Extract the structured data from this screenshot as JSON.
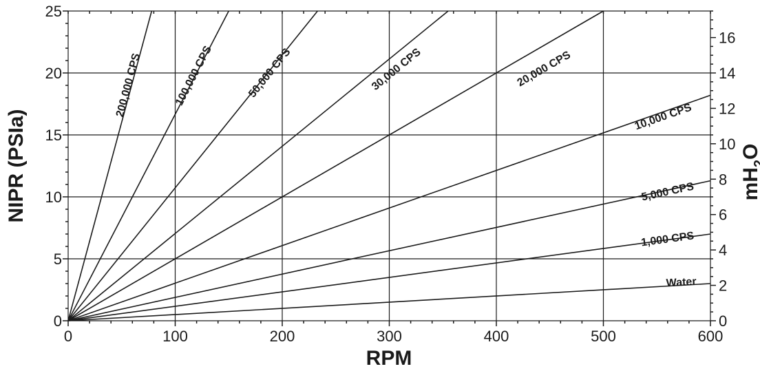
{
  "chart_data": {
    "type": "line",
    "xlabel": "RPM",
    "ylabel": "NIPR (PSIa)",
    "y2label_main": "mH",
    "y2label_sub": "2",
    "y2label_end": "O",
    "xlim": [
      0,
      600
    ],
    "ylim": [
      0,
      25
    ],
    "y2lim": [
      0,
      17.5
    ],
    "grid": true,
    "x_ticks": [
      0,
      100,
      200,
      300,
      400,
      500,
      600
    ],
    "x_tick_labels": [
      "0",
      "100",
      "200",
      "300",
      "400",
      "500",
      "600"
    ],
    "y_ticks": [
      0,
      5,
      10,
      15,
      20,
      25
    ],
    "y_tick_labels": [
      "0",
      "5",
      "10",
      "15",
      "20",
      "25"
    ],
    "y2_ticks": [
      0,
      2,
      4,
      6,
      8,
      10,
      12,
      14,
      16
    ],
    "y2_tick_labels": [
      "0",
      "2",
      "4",
      "6",
      "8",
      "10",
      "12",
      "14",
      "16"
    ],
    "series": [
      {
        "name": "Water",
        "x": [
          0,
          600
        ],
        "y": [
          0,
          3.0
        ],
        "label_at": [
          587,
          2.9
        ]
      },
      {
        "name": "1,000 CPS",
        "x": [
          0,
          600
        ],
        "y": [
          0,
          7.0
        ],
        "label_at": [
          585,
          6.6
        ]
      },
      {
        "name": "5,000 CPS",
        "x": [
          0,
          600
        ],
        "y": [
          0,
          11.3
        ],
        "label_at": [
          585,
          10.6
        ]
      },
      {
        "name": "10,000 CPS",
        "x": [
          0,
          600
        ],
        "y": [
          0,
          18.2
        ],
        "label_at": [
          583,
          17.0
        ]
      },
      {
        "name": "20,000 CPS",
        "x": [
          0,
          500
        ],
        "y": [
          0,
          25
        ],
        "label_at": [
          470,
          21.3
        ]
      },
      {
        "name": "30,000 CPS",
        "x": [
          0,
          355
        ],
        "y": [
          0,
          25
        ],
        "label_at": [
          330,
          21.6
        ]
      },
      {
        "name": "50,000 CPS",
        "x": [
          0,
          233
        ],
        "y": [
          0,
          25
        ],
        "label_at": [
          208,
          21.7
        ]
      },
      {
        "name": "100,000 CPS",
        "x": [
          0,
          150
        ],
        "y": [
          0,
          25
        ],
        "label_at": [
          134,
          22.0
        ]
      },
      {
        "name": "200,000 CPS",
        "x": [
          0,
          78
        ],
        "y": [
          0,
          25
        ],
        "label_at": [
          67,
          21.5
        ]
      }
    ]
  }
}
